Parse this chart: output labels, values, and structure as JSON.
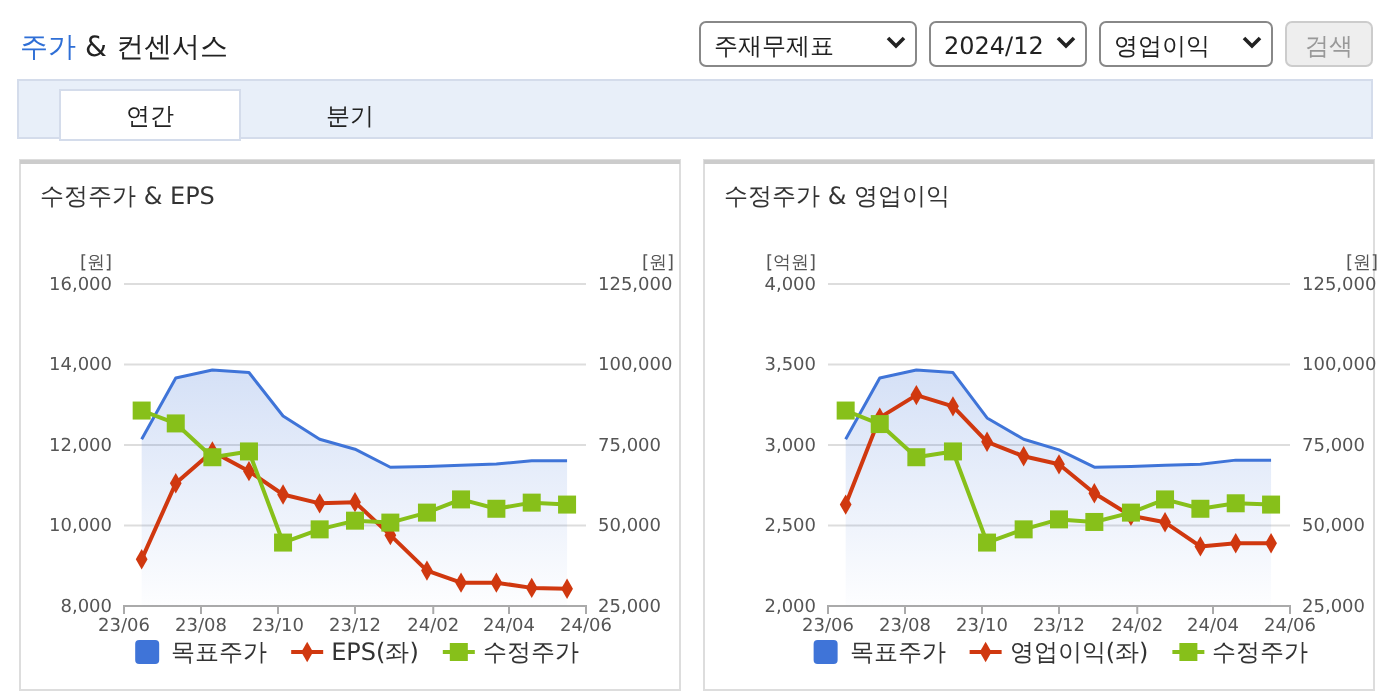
{
  "chart_data": [
    {
      "type": "other",
      "title": "주가 & 컨센서스",
      "annotations": [
        "주재무제표",
        "2024/12",
        "영업이익",
        "검색",
        "연간",
        "분기"
      ]
    },
    {
      "type": "line",
      "title": "수정주가 & EPS",
      "ylabel": "[원]",
      "y2label": "[원]",
      "legend": "bottom",
      "grid": "y",
      "x": [
        "2023-06-15",
        "2023-07-12",
        "2023-08-10",
        "2023-09-08",
        "2023-10-05",
        "2023-11-03",
        "2023-12-01",
        "2023-12-29",
        "2024-01-27",
        "2024-02-23",
        "2024-03-22",
        "2024-04-19",
        "2024-05-17"
      ],
      "xlim": [
        "2023-06",
        "2024-06"
      ],
      "xticks": [
        {
          "value": "2023-06",
          "label": "23/06"
        },
        {
          "value": "2023-08",
          "label": "23/08"
        },
        {
          "value": "2023-10",
          "label": "23/10"
        },
        {
          "value": "2023-12",
          "label": "23/12"
        },
        {
          "value": "2024-02",
          "label": "24/02"
        },
        {
          "value": "2024-04",
          "label": "24/04"
        },
        {
          "value": "2024-06",
          "label": "24/06"
        }
      ],
      "ylim": [
        8000,
        16000
      ],
      "yticks": [
        {
          "value": 8000,
          "label": "8,000"
        },
        {
          "value": 10000,
          "label": "10,000"
        },
        {
          "value": 12000,
          "label": "12,000"
        },
        {
          "value": 14000,
          "label": "14,000"
        },
        {
          "value": 16000,
          "label": "16,000"
        }
      ],
      "y2lim": [
        25000,
        125000
      ],
      "y2ticks": [
        {
          "value": 25000,
          "label": "25,000"
        },
        {
          "value": 50000,
          "label": "50,000"
        },
        {
          "value": 75000,
          "label": "75,000"
        },
        {
          "value": 100000,
          "label": "100,000"
        },
        {
          "value": 125000,
          "label": "125,000"
        }
      ],
      "series": [
        {
          "name": "목표주가",
          "type": "area",
          "axis": "y2",
          "color": "#3f74d8",
          "values": [
            76800,
            95800,
            98300,
            97500,
            84000,
            76800,
            73700,
            68100,
            68300,
            68700,
            69100,
            70100,
            70100
          ]
        },
        {
          "name": "EPS(좌)",
          "type": "line",
          "marker": "diamond",
          "color": "#d0380f",
          "values": [
            9160,
            11050,
            11840,
            11350,
            10770,
            10550,
            10580,
            9760,
            8880,
            8580,
            8580,
            8450,
            8430
          ]
        },
        {
          "name": "수정주가",
          "type": "line",
          "axis": "y2",
          "marker": "square",
          "color": "#87c01a",
          "values": [
            85700,
            81700,
            71200,
            73000,
            44700,
            48800,
            51500,
            50900,
            54000,
            58100,
            55200,
            57100,
            56500
          ]
        }
      ]
    },
    {
      "type": "line",
      "title": "수정주가 & 영업이익",
      "ylabel": "[억원]",
      "y2label": "[원]",
      "legend": "bottom",
      "grid": "y",
      "x": [
        "2023-06-15",
        "2023-07-12",
        "2023-08-10",
        "2023-09-08",
        "2023-10-05",
        "2023-11-03",
        "2023-12-01",
        "2023-12-29",
        "2024-01-27",
        "2024-02-23",
        "2024-03-22",
        "2024-04-19",
        "2024-05-17"
      ],
      "xlim": [
        "2023-06",
        "2024-06"
      ],
      "xticks": [
        {
          "value": "2023-06",
          "label": "23/06"
        },
        {
          "value": "2023-08",
          "label": "23/08"
        },
        {
          "value": "2023-10",
          "label": "23/10"
        },
        {
          "value": "2023-12",
          "label": "23/12"
        },
        {
          "value": "2024-02",
          "label": "24/02"
        },
        {
          "value": "2024-04",
          "label": "24/04"
        },
        {
          "value": "2024-06",
          "label": "24/06"
        }
      ],
      "ylim": [
        2000,
        4000
      ],
      "yticks": [
        {
          "value": 2000,
          "label": "2,000"
        },
        {
          "value": 2500,
          "label": "2,500"
        },
        {
          "value": 3000,
          "label": "3,000"
        },
        {
          "value": 3500,
          "label": "3,500"
        },
        {
          "value": 4000,
          "label": "4,000"
        }
      ],
      "y2lim": [
        25000,
        125000
      ],
      "y2ticks": [
        {
          "value": 25000,
          "label": "25,000"
        },
        {
          "value": 50000,
          "label": "50,000"
        },
        {
          "value": 75000,
          "label": "75,000"
        },
        {
          "value": 100000,
          "label": "100,000"
        },
        {
          "value": 125000,
          "label": "125,000"
        }
      ],
      "series": [
        {
          "name": "목표주가",
          "type": "area",
          "axis": "y2",
          "color": "#3f74d8",
          "values": [
            76800,
            95800,
            98300,
            97500,
            83400,
            76800,
            73500,
            68100,
            68300,
            68700,
            69000,
            70300,
            70300
          ]
        },
        {
          "name": "영업이익(좌)",
          "type": "line",
          "marker": "diamond",
          "color": "#d0380f",
          "values": [
            2630,
            3170,
            3310,
            3240,
            3020,
            2930,
            2880,
            2700,
            2560,
            2520,
            2370,
            2390,
            2390
          ]
        },
        {
          "name": "수정주가",
          "type": "line",
          "axis": "y2",
          "marker": "square",
          "color": "#87c01a",
          "values": [
            85700,
            81500,
            71200,
            73000,
            44700,
            48800,
            51900,
            51100,
            54000,
            58100,
            55200,
            56900,
            56500
          ]
        }
      ]
    }
  ]
}
